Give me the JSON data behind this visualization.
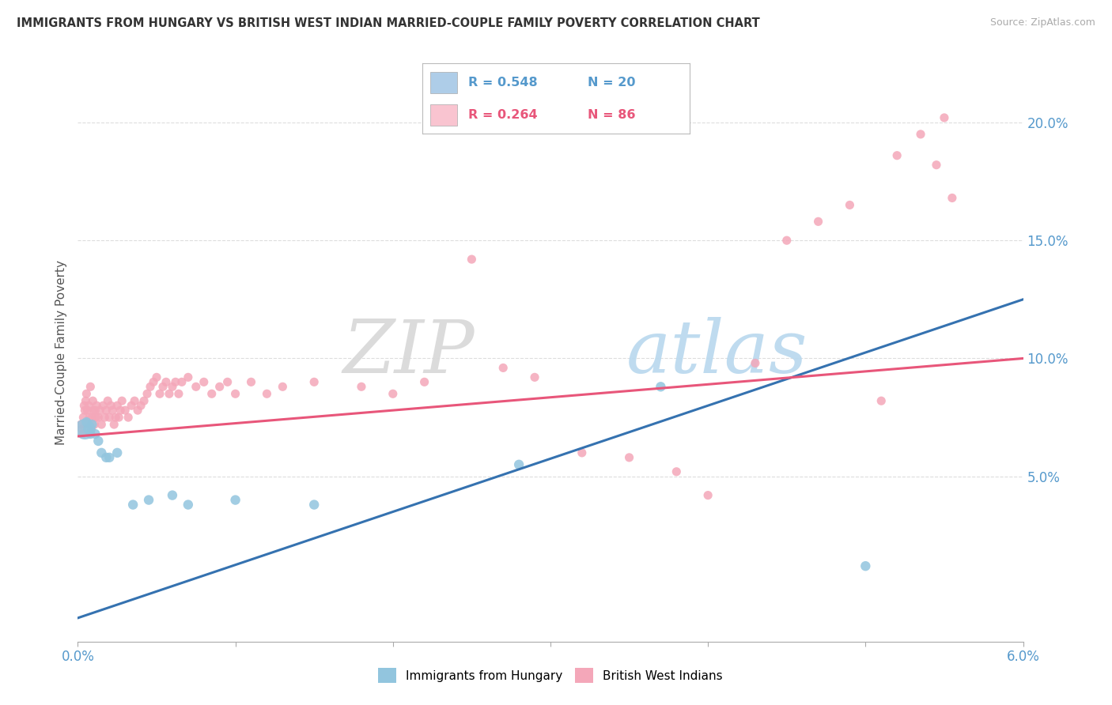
{
  "title": "IMMIGRANTS FROM HUNGARY VS BRITISH WEST INDIAN MARRIED-COUPLE FAMILY POVERTY CORRELATION CHART",
  "source": "Source: ZipAtlas.com",
  "ylabel": "Married-Couple Family Poverty",
  "y_tick_labels": [
    "5.0%",
    "10.0%",
    "15.0%",
    "20.0%"
  ],
  "y_tick_values": [
    0.05,
    0.1,
    0.15,
    0.2
  ],
  "x_min": 0.0,
  "x_max": 0.06,
  "y_min": -0.02,
  "y_max": 0.225,
  "watermark_zip": "ZIP",
  "watermark_atlas": "atlas",
  "legend_blue_r": "R = 0.548",
  "legend_blue_n": "N = 20",
  "legend_pink_r": "R = 0.264",
  "legend_pink_n": "N = 86",
  "blue_color": "#92c5de",
  "pink_color": "#f4a7b9",
  "blue_fill": "#aecde8",
  "pink_fill": "#f9c4d0",
  "blue_line_color": "#3572b0",
  "pink_line_color": "#e8567a",
  "blue_line": [
    [
      0.0,
      -0.01
    ],
    [
      0.06,
      0.125
    ]
  ],
  "pink_line": [
    [
      0.0,
      0.067
    ],
    [
      0.06,
      0.1
    ]
  ],
  "blue_scatter": [
    [
      0.00045,
      0.07
    ],
    [
      0.00055,
      0.073
    ],
    [
      0.00065,
      0.07
    ],
    [
      0.0008,
      0.068
    ],
    [
      0.0009,
      0.072
    ],
    [
      0.0011,
      0.068
    ],
    [
      0.0013,
      0.065
    ],
    [
      0.0015,
      0.06
    ],
    [
      0.0018,
      0.058
    ],
    [
      0.002,
      0.058
    ],
    [
      0.0025,
      0.06
    ],
    [
      0.0035,
      0.038
    ],
    [
      0.0045,
      0.04
    ],
    [
      0.006,
      0.042
    ],
    [
      0.007,
      0.038
    ],
    [
      0.01,
      0.04
    ],
    [
      0.015,
      0.038
    ],
    [
      0.028,
      0.055
    ],
    [
      0.037,
      0.088
    ],
    [
      0.05,
      0.012
    ]
  ],
  "blue_scatter_sizes": [
    350,
    80,
    80,
    80,
    80,
    80,
    80,
    80,
    80,
    80,
    80,
    80,
    80,
    80,
    80,
    80,
    80,
    80,
    80,
    80
  ],
  "pink_scatter": [
    [
      0.0002,
      0.072
    ],
    [
      0.00025,
      0.07
    ],
    [
      0.0003,
      0.068
    ],
    [
      0.00035,
      0.075
    ],
    [
      0.0004,
      0.08
    ],
    [
      0.00045,
      0.078
    ],
    [
      0.0005,
      0.082
    ],
    [
      0.00055,
      0.085
    ],
    [
      0.0006,
      0.078
    ],
    [
      0.00065,
      0.072
    ],
    [
      0.0007,
      0.08
    ],
    [
      0.00075,
      0.075
    ],
    [
      0.0008,
      0.088
    ],
    [
      0.00085,
      0.07
    ],
    [
      0.0009,
      0.075
    ],
    [
      0.00095,
      0.082
    ],
    [
      0.001,
      0.078
    ],
    [
      0.00105,
      0.072
    ],
    [
      0.0011,
      0.078
    ],
    [
      0.00115,
      0.075
    ],
    [
      0.0012,
      0.08
    ],
    [
      0.0013,
      0.075
    ],
    [
      0.0014,
      0.078
    ],
    [
      0.0015,
      0.072
    ],
    [
      0.0016,
      0.08
    ],
    [
      0.0017,
      0.075
    ],
    [
      0.0018,
      0.078
    ],
    [
      0.0019,
      0.082
    ],
    [
      0.002,
      0.075
    ],
    [
      0.0021,
      0.08
    ],
    [
      0.0022,
      0.078
    ],
    [
      0.0023,
      0.072
    ],
    [
      0.0024,
      0.075
    ],
    [
      0.0025,
      0.08
    ],
    [
      0.0026,
      0.075
    ],
    [
      0.0027,
      0.078
    ],
    [
      0.0028,
      0.082
    ],
    [
      0.003,
      0.078
    ],
    [
      0.0032,
      0.075
    ],
    [
      0.0034,
      0.08
    ],
    [
      0.0036,
      0.082
    ],
    [
      0.0038,
      0.078
    ],
    [
      0.004,
      0.08
    ],
    [
      0.0042,
      0.082
    ],
    [
      0.0044,
      0.085
    ],
    [
      0.0046,
      0.088
    ],
    [
      0.0048,
      0.09
    ],
    [
      0.005,
      0.092
    ],
    [
      0.0052,
      0.085
    ],
    [
      0.0054,
      0.088
    ],
    [
      0.0056,
      0.09
    ],
    [
      0.0058,
      0.085
    ],
    [
      0.006,
      0.088
    ],
    [
      0.0062,
      0.09
    ],
    [
      0.0064,
      0.085
    ],
    [
      0.0066,
      0.09
    ],
    [
      0.007,
      0.092
    ],
    [
      0.0075,
      0.088
    ],
    [
      0.008,
      0.09
    ],
    [
      0.0085,
      0.085
    ],
    [
      0.009,
      0.088
    ],
    [
      0.0095,
      0.09
    ],
    [
      0.01,
      0.085
    ],
    [
      0.011,
      0.09
    ],
    [
      0.012,
      0.085
    ],
    [
      0.013,
      0.088
    ],
    [
      0.015,
      0.09
    ],
    [
      0.018,
      0.088
    ],
    [
      0.02,
      0.085
    ],
    [
      0.022,
      0.09
    ],
    [
      0.025,
      0.142
    ],
    [
      0.027,
      0.096
    ],
    [
      0.029,
      0.092
    ],
    [
      0.032,
      0.06
    ],
    [
      0.035,
      0.058
    ],
    [
      0.038,
      0.052
    ],
    [
      0.04,
      0.042
    ],
    [
      0.043,
      0.098
    ],
    [
      0.045,
      0.15
    ],
    [
      0.047,
      0.158
    ],
    [
      0.049,
      0.165
    ],
    [
      0.051,
      0.082
    ],
    [
      0.052,
      0.186
    ],
    [
      0.0535,
      0.195
    ],
    [
      0.0545,
      0.182
    ],
    [
      0.055,
      0.202
    ],
    [
      0.0555,
      0.168
    ]
  ]
}
